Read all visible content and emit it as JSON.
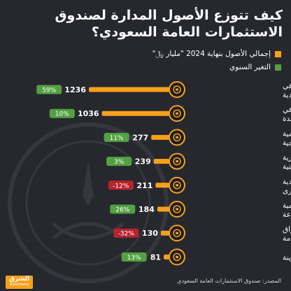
{
  "title_line1": "كيف تتوزع الأصول المدارة لصندوق",
  "title_line2": "الاستثمارات العامة السعودي؟",
  "legend": {
    "total_assets": "إجمالي الأصول بنهاية 2024 \"مليار ﷼\"",
    "annual_change": "التغير السنوي"
  },
  "colors": {
    "background": "#26282e",
    "bar": "#f7a11a",
    "positive_badge": "#53a142",
    "negative_badge": "#b8232e",
    "icon_ring": "#f7a11a"
  },
  "chart_data": {
    "type": "bar",
    "orientation": "horizontal",
    "categories": [
      "الاستثمارات في الشركات السعودية",
      "الاستثمارات في القطاعات الواعدة",
      "الاستثمارات العالمية الاستراتيجية",
      "المشاريع العقارية والبنية التحتية",
      "المشاريع السعودية الكبرى",
      "الاستثمارات العالمية المتنوعة",
      "الاستثمارات في الأسواق العالمية العامة",
      "محفظة الخزينة"
    ],
    "values": [
      1236,
      1036,
      277,
      239,
      211,
      184,
      130,
      81
    ],
    "value_labels": [
      "1236",
      "1036",
      "277",
      "239",
      "211",
      "184",
      "130",
      "81"
    ],
    "annual_change": [
      59,
      10,
      11,
      3,
      -12,
      26,
      -32,
      13
    ],
    "annual_change_labels": [
      "59%",
      "10%",
      "11%",
      "3%",
      "-12%",
      "26%",
      "-32%",
      "13%"
    ],
    "icons": [
      "building-icon",
      "growth-chart-icon",
      "globe-icon",
      "construction-icon",
      "rocket-icon",
      "diversified-icon",
      "globe-market-icon",
      "safe-icon"
    ]
  },
  "footer": {
    "logo_ar": "الشرق",
    "logo_en": "Bloomberg",
    "source": "المصدر: صندوق الاستثمارات العامة السعودي"
  }
}
